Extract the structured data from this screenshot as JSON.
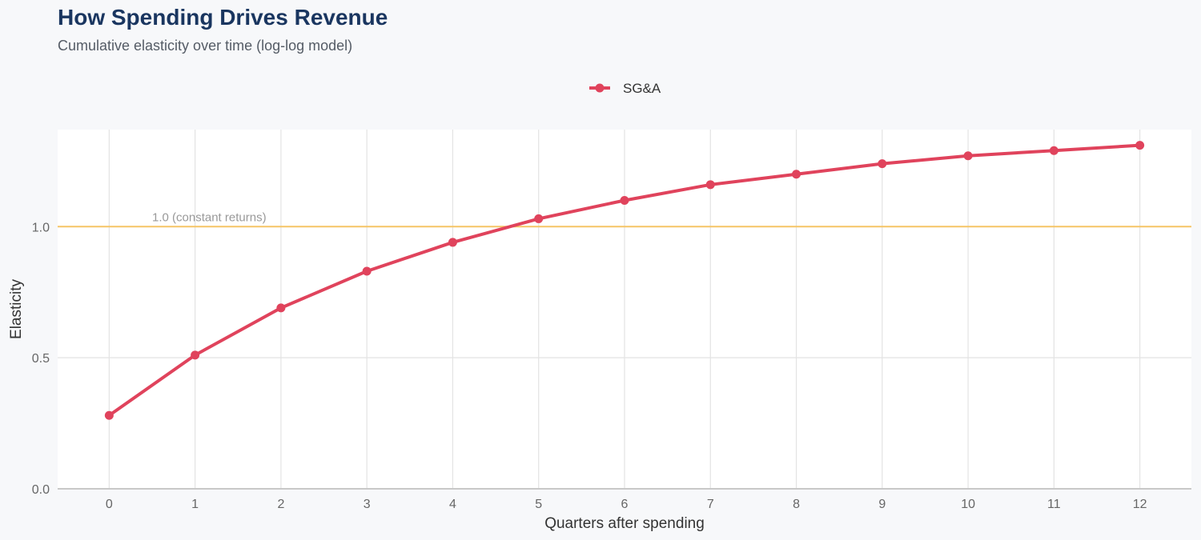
{
  "title": "How Spending Drives Revenue",
  "subtitle": "Cumulative elasticity over time (log-log model)",
  "colors": {
    "series": "#e0435c",
    "reference": "#f5c566",
    "grid": "#e3e3e3",
    "panel": "#ffffff",
    "background": "#f7f8fa",
    "title": "#1a3660"
  },
  "chart_data": {
    "type": "line",
    "xlabel": "Quarters after spending",
    "ylabel": "Elasticity",
    "x": [
      0,
      1,
      2,
      3,
      4,
      5,
      6,
      7,
      8,
      9,
      10,
      11,
      12
    ],
    "series": [
      {
        "name": "SG&A",
        "values": [
          0.28,
          0.51,
          0.69,
          0.83,
          0.94,
          1.03,
          1.1,
          1.16,
          1.2,
          1.24,
          1.27,
          1.29,
          1.31
        ]
      }
    ],
    "xlim": [
      -0.6,
      12.6
    ],
    "ylim": [
      0.0,
      1.37
    ],
    "x_ticks": [
      "0",
      "1",
      "2",
      "3",
      "4",
      "5",
      "6",
      "7",
      "8",
      "9",
      "10",
      "11",
      "12"
    ],
    "y_ticks": [
      "0.0",
      "0.5",
      "1.0"
    ],
    "reference_line": {
      "y": 1.0,
      "label": "1.0 (constant returns)"
    },
    "legend_position": "top-center",
    "grid": true
  }
}
